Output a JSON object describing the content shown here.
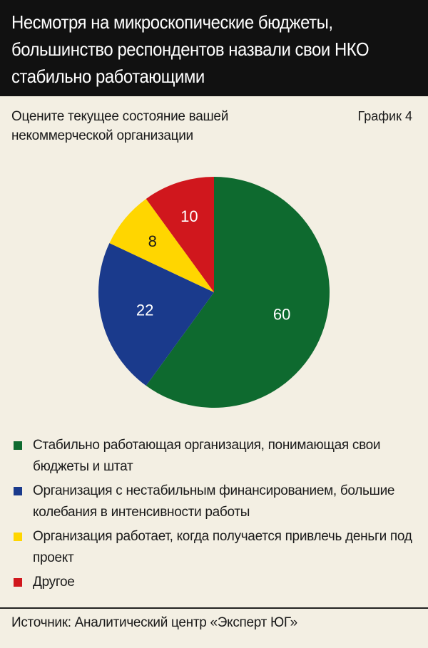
{
  "header": {
    "title": "Несмотря на микроскопические бюджеты, большинство респондентов назвали свои НКО стабильно работающими"
  },
  "subtitle": "Оцените текущее состояние вашей некоммерческой организации",
  "chart_label": "График 4",
  "source": "Источник: Аналитический центр «Эксперт ЮГ»",
  "colors": {
    "background": "#f3efe3",
    "header": "#111111",
    "green": "#0e6a2f",
    "blue": "#1a3a8c",
    "yellow": "#ffd600",
    "red": "#d0171d"
  },
  "chart_data": {
    "type": "pie",
    "title": "Оцените текущее состояние вашей некоммерческой организации",
    "start_angle": "12 o'clock",
    "direction": "clockwise",
    "slices": [
      {
        "label": "Стабильно работающая организация, понимающая свои бюджеты и штат",
        "value": 60,
        "color": "#0e6a2f",
        "value_label": "60"
      },
      {
        "label": "Организация с нестабильным финансированием, большие колебания в интенсивности работы",
        "value": 22,
        "color": "#1a3a8c",
        "value_label": "22"
      },
      {
        "label": "Организация работает, когда получается привлечь деньги под проект",
        "value": 8,
        "color": "#ffd600",
        "value_label": "8"
      },
      {
        "label": "Другое",
        "value": 10,
        "color": "#d0171d",
        "value_label": "10"
      }
    ],
    "legend_placement": "bottom"
  }
}
